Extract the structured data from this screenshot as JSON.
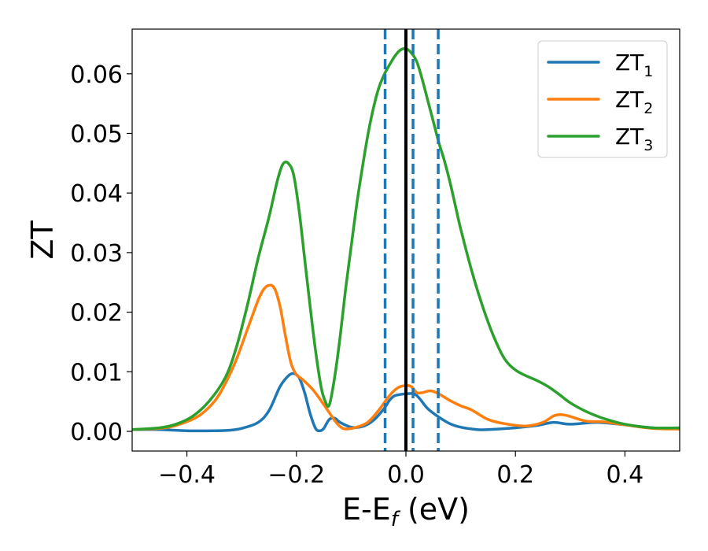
{
  "chart_data": {
    "type": "line",
    "xlabel": "E-E",
    "xlabel_sub": "f",
    "xlabel_unit": " (eV)",
    "ylabel": "ZT",
    "xlim": [
      -0.5,
      0.5
    ],
    "ylim": [
      -0.0033,
      0.0675
    ],
    "grid": false,
    "legend_position": "top-right",
    "x_ticks": [
      -0.4,
      -0.2,
      0.0,
      0.2,
      0.4
    ],
    "x_tick_labels": [
      "−0.4",
      "−0.2",
      "0.0",
      "0.2",
      "0.4"
    ],
    "y_ticks": [
      0.0,
      0.01,
      0.02,
      0.03,
      0.04,
      0.05,
      0.06
    ],
    "y_tick_labels": [
      "0.00",
      "0.01",
      "0.02",
      "0.03",
      "0.04",
      "0.05",
      "0.06"
    ],
    "vertical_lines": [
      {
        "x": -0.038,
        "style": "dashed",
        "color": "#1f77b4"
      },
      {
        "x": 0.013,
        "style": "dashed",
        "color": "#1f77b4"
      },
      {
        "x": 0.059,
        "style": "dashed",
        "color": "#1f77b4"
      },
      {
        "x": 0.0,
        "style": "solid",
        "color": "#000000"
      }
    ],
    "series": [
      {
        "name": "ZT",
        "name_sub": "1",
        "color": "#1f77b4",
        "points": [
          [
            -0.5,
            0.0003
          ],
          [
            -0.45,
            0.0003
          ],
          [
            -0.4,
            0.0001
          ],
          [
            -0.35,
            0.0001
          ],
          [
            -0.32,
            0.0002
          ],
          [
            -0.3,
            0.0005
          ],
          [
            -0.27,
            0.0015
          ],
          [
            -0.25,
            0.0035
          ],
          [
            -0.23,
            0.0075
          ],
          [
            -0.215,
            0.0093
          ],
          [
            -0.205,
            0.0097
          ],
          [
            -0.195,
            0.009
          ],
          [
            -0.185,
            0.0065
          ],
          [
            -0.175,
            0.003
          ],
          [
            -0.165,
            0.0005
          ],
          [
            -0.157,
            0.0001
          ],
          [
            -0.15,
            0.0005
          ],
          [
            -0.14,
            0.002
          ],
          [
            -0.13,
            0.0022
          ],
          [
            -0.12,
            0.0015
          ],
          [
            -0.1,
            0.0007
          ],
          [
            -0.08,
            0.0008
          ],
          [
            -0.06,
            0.0018
          ],
          [
            -0.04,
            0.0038
          ],
          [
            -0.03,
            0.0052
          ],
          [
            -0.02,
            0.006
          ],
          [
            0.0,
            0.0063
          ],
          [
            0.015,
            0.0063
          ],
          [
            0.025,
            0.0055
          ],
          [
            0.04,
            0.0038
          ],
          [
            0.06,
            0.0024
          ],
          [
            0.08,
            0.0013
          ],
          [
            0.1,
            0.0007
          ],
          [
            0.13,
            0.0003
          ],
          [
            0.15,
            0.0003
          ],
          [
            0.2,
            0.0006
          ],
          [
            0.24,
            0.001
          ],
          [
            0.27,
            0.0015
          ],
          [
            0.3,
            0.0012
          ],
          [
            0.35,
            0.0015
          ],
          [
            0.4,
            0.0011
          ],
          [
            0.45,
            0.0006
          ],
          [
            0.5,
            0.0004
          ]
        ]
      },
      {
        "name": "ZT",
        "name_sub": "2",
        "color": "#ff7f0e",
        "points": [
          [
            -0.5,
            0.0003
          ],
          [
            -0.45,
            0.0005
          ],
          [
            -0.42,
            0.001
          ],
          [
            -0.38,
            0.0025
          ],
          [
            -0.35,
            0.005
          ],
          [
            -0.33,
            0.008
          ],
          [
            -0.31,
            0.012
          ],
          [
            -0.29,
            0.017
          ],
          [
            -0.27,
            0.022
          ],
          [
            -0.26,
            0.0238
          ],
          [
            -0.25,
            0.0245
          ],
          [
            -0.24,
            0.024
          ],
          [
            -0.23,
            0.021
          ],
          [
            -0.22,
            0.016
          ],
          [
            -0.21,
            0.0115
          ],
          [
            -0.2,
            0.0095
          ],
          [
            -0.19,
            0.0088
          ],
          [
            -0.17,
            0.007
          ],
          [
            -0.15,
            0.0045
          ],
          [
            -0.13,
            0.0018
          ],
          [
            -0.12,
            0.0008
          ],
          [
            -0.11,
            0.0004
          ],
          [
            -0.09,
            0.0007
          ],
          [
            -0.07,
            0.0015
          ],
          [
            -0.05,
            0.0035
          ],
          [
            -0.03,
            0.006
          ],
          [
            -0.015,
            0.0073
          ],
          [
            0.0,
            0.0077
          ],
          [
            0.01,
            0.0075
          ],
          [
            0.02,
            0.0065
          ],
          [
            0.03,
            0.0065
          ],
          [
            0.045,
            0.0068
          ],
          [
            0.06,
            0.0063
          ],
          [
            0.08,
            0.0052
          ],
          [
            0.1,
            0.0043
          ],
          [
            0.12,
            0.0036
          ],
          [
            0.15,
            0.002
          ],
          [
            0.18,
            0.0013
          ],
          [
            0.22,
            0.0009
          ],
          [
            0.25,
            0.0015
          ],
          [
            0.27,
            0.0026
          ],
          [
            0.285,
            0.0028
          ],
          [
            0.3,
            0.0025
          ],
          [
            0.33,
            0.0017
          ],
          [
            0.36,
            0.0016
          ],
          [
            0.4,
            0.0011
          ],
          [
            0.45,
            0.0005
          ],
          [
            0.5,
            0.0004
          ]
        ]
      },
      {
        "name": "ZT",
        "name_sub": "3",
        "color": "#2ca02c",
        "points": [
          [
            -0.5,
            0.0003
          ],
          [
            -0.45,
            0.0006
          ],
          [
            -0.42,
            0.0012
          ],
          [
            -0.39,
            0.0025
          ],
          [
            -0.36,
            0.005
          ],
          [
            -0.33,
            0.009
          ],
          [
            -0.31,
            0.014
          ],
          [
            -0.29,
            0.021
          ],
          [
            -0.27,
            0.029
          ],
          [
            -0.25,
            0.036
          ],
          [
            -0.235,
            0.042
          ],
          [
            -0.225,
            0.0448
          ],
          [
            -0.215,
            0.045
          ],
          [
            -0.205,
            0.043
          ],
          [
            -0.195,
            0.037
          ],
          [
            -0.185,
            0.029
          ],
          [
            -0.175,
            0.021
          ],
          [
            -0.165,
            0.0135
          ],
          [
            -0.155,
            0.0075
          ],
          [
            -0.148,
            0.0052
          ],
          [
            -0.14,
            0.0044
          ],
          [
            -0.13,
            0.0092
          ],
          [
            -0.12,
            0.016
          ],
          [
            -0.11,
            0.024
          ],
          [
            -0.1,
            0.031
          ],
          [
            -0.09,
            0.038
          ],
          [
            -0.08,
            0.044
          ],
          [
            -0.07,
            0.0495
          ],
          [
            -0.06,
            0.054
          ],
          [
            -0.05,
            0.0575
          ],
          [
            -0.04,
            0.0598
          ],
          [
            -0.03,
            0.0615
          ],
          [
            -0.02,
            0.063
          ],
          [
            -0.01,
            0.064
          ],
          [
            0.0,
            0.0642
          ],
          [
            0.01,
            0.0635
          ],
          [
            0.02,
            0.062
          ],
          [
            0.03,
            0.059
          ],
          [
            0.04,
            0.0555
          ],
          [
            0.05,
            0.052
          ],
          [
            0.06,
            0.0485
          ],
          [
            0.07,
            0.0455
          ],
          [
            0.08,
            0.042
          ],
          [
            0.09,
            0.038
          ],
          [
            0.1,
            0.034
          ],
          [
            0.12,
            0.027
          ],
          [
            0.14,
            0.021
          ],
          [
            0.16,
            0.016
          ],
          [
            0.18,
            0.0122
          ],
          [
            0.2,
            0.0103
          ],
          [
            0.22,
            0.0093
          ],
          [
            0.24,
            0.0085
          ],
          [
            0.26,
            0.0075
          ],
          [
            0.28,
            0.0062
          ],
          [
            0.3,
            0.0048
          ],
          [
            0.33,
            0.0033
          ],
          [
            0.36,
            0.0022
          ],
          [
            0.4,
            0.0012
          ],
          [
            0.45,
            0.0006
          ],
          [
            0.5,
            0.0006
          ]
        ]
      }
    ]
  }
}
